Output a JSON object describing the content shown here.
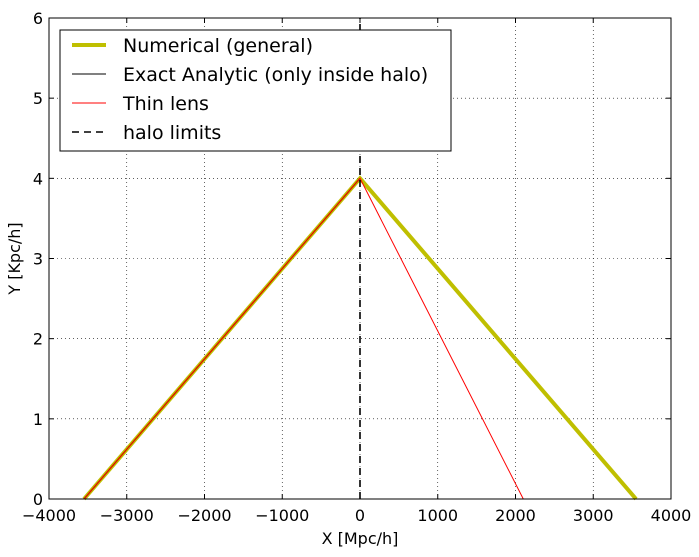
{
  "chart_data": {
    "type": "line",
    "title": "",
    "xlabel": "X [Mpc/h]",
    "ylabel": "Y [Kpc/h]",
    "xlim": [
      -4000,
      4000
    ],
    "ylim": [
      0,
      6
    ],
    "xticks": [
      -4000,
      -3000,
      -2000,
      -1000,
      0,
      1000,
      2000,
      3000,
      4000
    ],
    "xtick_labels": [
      "−4000",
      "−3000",
      "−2000",
      "−1000",
      "0",
      "1000",
      "2000",
      "3000",
      "4000"
    ],
    "yticks": [
      0,
      1,
      2,
      3,
      4,
      5,
      6
    ],
    "ytick_labels": [
      "0",
      "1",
      "2",
      "3",
      "4",
      "5",
      "6"
    ],
    "grid": true,
    "legend_position": "top-left",
    "series": [
      {
        "name": "Numerical (general)",
        "color": "#bfbf00",
        "style": "solid",
        "x": [
          -3550,
          0,
          3550
        ],
        "y": [
          0,
          4,
          0
        ]
      },
      {
        "name": "Exact Analytic (only inside halo)",
        "color": "#000000",
        "style": "solid",
        "x": [
          -3550,
          0
        ],
        "y": [
          0,
          4
        ]
      },
      {
        "name": "Thin lens",
        "color": "#ff0000",
        "style": "solid",
        "x": [
          -3550,
          0,
          2100
        ],
        "y": [
          0,
          4,
          0
        ]
      },
      {
        "name": "halo limits",
        "color": "#000000",
        "style": "dashed",
        "x": [
          0,
          0
        ],
        "y": [
          0,
          6
        ]
      }
    ]
  }
}
